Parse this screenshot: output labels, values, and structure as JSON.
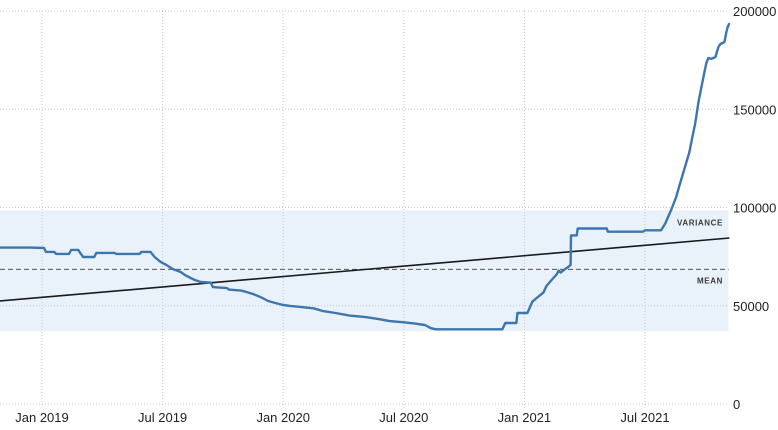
{
  "colors": {
    "series_line": "#3d76ad",
    "trend_line": "#1a1a1a",
    "mean_line": "#555555",
    "variance_band_fill": "#e9f1fb",
    "gridline": "#c9c9c9",
    "axis_text": "#222222",
    "background": "#ffffff"
  },
  "chart_data": {
    "type": "line",
    "title": "",
    "xlabel": "",
    "ylabel": "",
    "x_unit": "months_since_2019-01",
    "x_range_months": [
      -2.1,
      34.2
    ],
    "ylim": [
      0,
      200000
    ],
    "grid": "dotted",
    "legend_position": "none",
    "y_ticks": [
      {
        "value": 200000,
        "label": "200000"
      },
      {
        "value": 150000,
        "label": "150000"
      },
      {
        "value": 100000,
        "label": "100000"
      },
      {
        "value": 50000,
        "label": "50000"
      },
      {
        "value": 0,
        "label": "0"
      }
    ],
    "x_ticks": [
      {
        "m": 0,
        "label": "Jan 2019"
      },
      {
        "m": 6,
        "label": "Jul 2019"
      },
      {
        "m": 12,
        "label": "Jan 2020"
      },
      {
        "m": 18,
        "label": "Jul 2020"
      },
      {
        "m": 24,
        "label": "Jan 2021"
      },
      {
        "m": 30,
        "label": "Jul 2021"
      }
    ],
    "series": [
      {
        "name": "value",
        "points": [
          [
            -2.1,
            79600
          ],
          [
            -0.6,
            79600
          ],
          [
            0.1,
            79400
          ],
          [
            0.2,
            77400
          ],
          [
            0.6,
            77400
          ],
          [
            0.7,
            76400
          ],
          [
            1.35,
            76400
          ],
          [
            1.45,
            78400
          ],
          [
            1.8,
            78400
          ],
          [
            1.9,
            76900
          ],
          [
            2.05,
            74800
          ],
          [
            2.6,
            74800
          ],
          [
            2.7,
            76900
          ],
          [
            3.6,
            76900
          ],
          [
            3.7,
            76400
          ],
          [
            4.85,
            76400
          ],
          [
            4.95,
            77400
          ],
          [
            5.4,
            77400
          ],
          [
            5.6,
            74800
          ],
          [
            5.9,
            72300
          ],
          [
            6.2,
            70700
          ],
          [
            6.5,
            68700
          ],
          [
            6.9,
            67200
          ],
          [
            7.1,
            65700
          ],
          [
            7.4,
            64100
          ],
          [
            7.6,
            63100
          ],
          [
            7.9,
            62100
          ],
          [
            8.4,
            61800
          ],
          [
            8.5,
            59500
          ],
          [
            9.2,
            59000
          ],
          [
            9.3,
            58200
          ],
          [
            9.9,
            57700
          ],
          [
            10.1,
            57200
          ],
          [
            10.5,
            56000
          ],
          [
            10.9,
            54300
          ],
          [
            11.25,
            52400
          ],
          [
            11.6,
            51400
          ],
          [
            12.0,
            50400
          ],
          [
            12.35,
            49900
          ],
          [
            12.85,
            49400
          ],
          [
            13.5,
            48700
          ],
          [
            13.95,
            47400
          ],
          [
            14.6,
            46300
          ],
          [
            15.3,
            45000
          ],
          [
            16.1,
            44200
          ],
          [
            16.7,
            43300
          ],
          [
            17.3,
            42200
          ],
          [
            18.0,
            41600
          ],
          [
            18.55,
            40900
          ],
          [
            19.05,
            40200
          ],
          [
            19.35,
            38600
          ],
          [
            19.6,
            38000
          ],
          [
            22.9,
            38000
          ],
          [
            23.05,
            41200
          ],
          [
            23.6,
            41200
          ],
          [
            23.65,
            46300
          ],
          [
            24.15,
            46300
          ],
          [
            24.4,
            52100
          ],
          [
            24.7,
            54700
          ],
          [
            24.95,
            56800
          ],
          [
            25.1,
            60100
          ],
          [
            25.4,
            63600
          ],
          [
            25.6,
            65900
          ],
          [
            25.7,
            67900
          ],
          [
            25.8,
            66900
          ],
          [
            26.0,
            68500
          ],
          [
            26.15,
            69500
          ],
          [
            26.3,
            70800
          ],
          [
            26.32,
            85800
          ],
          [
            26.6,
            85800
          ],
          [
            26.65,
            89300
          ],
          [
            28.1,
            89300
          ],
          [
            28.15,
            87700
          ],
          [
            29.9,
            87700
          ],
          [
            30.0,
            88400
          ],
          [
            30.8,
            88400
          ],
          [
            31.0,
            91700
          ],
          [
            31.15,
            95200
          ],
          [
            31.3,
            98700
          ],
          [
            31.55,
            105400
          ],
          [
            31.75,
            112500
          ],
          [
            31.9,
            117600
          ],
          [
            32.05,
            122700
          ],
          [
            32.2,
            127800
          ],
          [
            32.35,
            135400
          ],
          [
            32.5,
            143000
          ],
          [
            32.65,
            153200
          ],
          [
            32.8,
            161000
          ],
          [
            32.95,
            168500
          ],
          [
            33.05,
            173500
          ],
          [
            33.15,
            176100
          ],
          [
            33.3,
            175600
          ],
          [
            33.5,
            176600
          ],
          [
            33.65,
            181700
          ],
          [
            33.75,
            183200
          ],
          [
            33.95,
            184200
          ],
          [
            34.05,
            189300
          ],
          [
            34.1,
            191400
          ],
          [
            34.18,
            193400
          ]
        ]
      }
    ],
    "trend_line": {
      "points": [
        [
          -2.1,
          52400
        ],
        [
          34.2,
          84500
        ]
      ]
    },
    "mean": {
      "label": "MEAN",
      "value": 68500
    },
    "variance_band": {
      "label": "VARIANCE",
      "lower": 37000,
      "upper": 98500
    }
  }
}
